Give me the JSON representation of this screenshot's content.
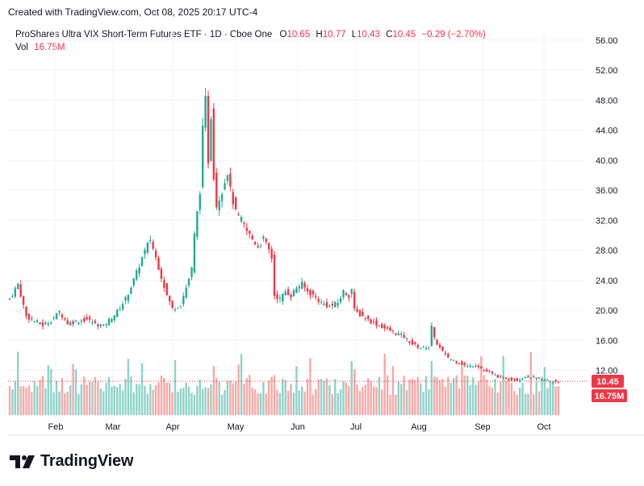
{
  "header": {
    "caption": "Created with TradingView.com, Oct 08, 2025 20:17 UTC-4"
  },
  "legend": {
    "title": "ProShares Ultra VIX Short-Term Futures ETF · 1D · Cboe One",
    "o_label": "O",
    "o_value": "10.65",
    "h_label": "H",
    "h_value": "10.77",
    "l_label": "L",
    "l_value": "10.43",
    "c_label": "C",
    "c_value": "10.45",
    "change": "−0.29 (−2.70%)",
    "vol_label": "Vol",
    "vol_value": "16.75M"
  },
  "price_tag": "10.45",
  "volume_tag": "16.75M",
  "brand": {
    "name": "TradingView"
  },
  "colors": {
    "up": "#22ab94",
    "down": "#f23645",
    "up_vol": "#8fd3c8",
    "down_vol": "#f7a9a7",
    "grid": "#f0f3fa"
  },
  "chart_data": {
    "type": "candlestick",
    "y_ticks": [
      "56.00",
      "52.00",
      "48.00",
      "44.00",
      "40.00",
      "36.00",
      "32.00",
      "28.00",
      "24.00",
      "20.00",
      "16.00",
      "12.00"
    ],
    "ylim": [
      8,
      57
    ],
    "x_labels": [
      "Feb",
      "Mar",
      "Apr",
      "May",
      "Jun",
      "Jul",
      "Aug",
      "Sep",
      "Oct"
    ],
    "last_close": 10.45,
    "last_volume_millions": 16.75,
    "anchors": [
      [
        0,
        21.5
      ],
      [
        3,
        23.5
      ],
      [
        6,
        19.2
      ],
      [
        9,
        18.6
      ],
      [
        12,
        18.0
      ],
      [
        15,
        18.6
      ],
      [
        18,
        19.8
      ],
      [
        21,
        18.3
      ],
      [
        24,
        18.5
      ],
      [
        28,
        18.8
      ],
      [
        31,
        18.2
      ],
      [
        34,
        17.9
      ],
      [
        36,
        18.7
      ],
      [
        39,
        19.8
      ],
      [
        42,
        21.5
      ],
      [
        45,
        24.0
      ],
      [
        48,
        27.0
      ],
      [
        51,
        29.5
      ],
      [
        53,
        27.0
      ],
      [
        55,
        24.5
      ],
      [
        57,
        22.0
      ],
      [
        59,
        20.2
      ],
      [
        62,
        20.8
      ],
      [
        64,
        23.0
      ],
      [
        66,
        25.5
      ],
      [
        67,
        30.0
      ],
      [
        69,
        36.0
      ],
      [
        70,
        44.0
      ],
      [
        71,
        48.0
      ],
      [
        72,
        40.0
      ],
      [
        73,
        46.0
      ],
      [
        74,
        38.0
      ],
      [
        75,
        34.0
      ],
      [
        77,
        36.0
      ],
      [
        79,
        38.5
      ],
      [
        80,
        36.0
      ],
      [
        82,
        33.0
      ],
      [
        84,
        32.0
      ],
      [
        86,
        30.5
      ],
      [
        88,
        29.5
      ],
      [
        90,
        28.5
      ],
      [
        92,
        29.5
      ],
      [
        94,
        28.0
      ],
      [
        95,
        27.0
      ],
      [
        96,
        22.0
      ],
      [
        98,
        21.5
      ],
      [
        100,
        22.5
      ],
      [
        102,
        22.0
      ],
      [
        104,
        23.0
      ],
      [
        106,
        23.5
      ],
      [
        108,
        22.5
      ],
      [
        110,
        22.0
      ],
      [
        113,
        21.0
      ],
      [
        116,
        20.5
      ],
      [
        119,
        21.0
      ],
      [
        121,
        22.5
      ],
      [
        123,
        22.0
      ],
      [
        124,
        22.8
      ],
      [
        125,
        20.0
      ],
      [
        128,
        19.2
      ],
      [
        131,
        18.5
      ],
      [
        134,
        18.0
      ],
      [
        137,
        17.4
      ],
      [
        140,
        17.0
      ],
      [
        143,
        16.5
      ],
      [
        146,
        15.5
      ],
      [
        149,
        15.0
      ],
      [
        152,
        15.2
      ],
      [
        153,
        17.8
      ],
      [
        154,
        16.2
      ],
      [
        156,
        15.0
      ],
      [
        158,
        14.0
      ],
      [
        160,
        13.5
      ],
      [
        163,
        13.0
      ],
      [
        166,
        12.5
      ],
      [
        169,
        12.8
      ],
      [
        172,
        12.0
      ],
      [
        175,
        11.5
      ],
      [
        178,
        11.0
      ],
      [
        181,
        10.9
      ],
      [
        184,
        10.7
      ],
      [
        187,
        11.2
      ],
      [
        190,
        11.0
      ],
      [
        193,
        10.8
      ],
      [
        196,
        10.6
      ],
      [
        199,
        10.45
      ]
    ]
  }
}
